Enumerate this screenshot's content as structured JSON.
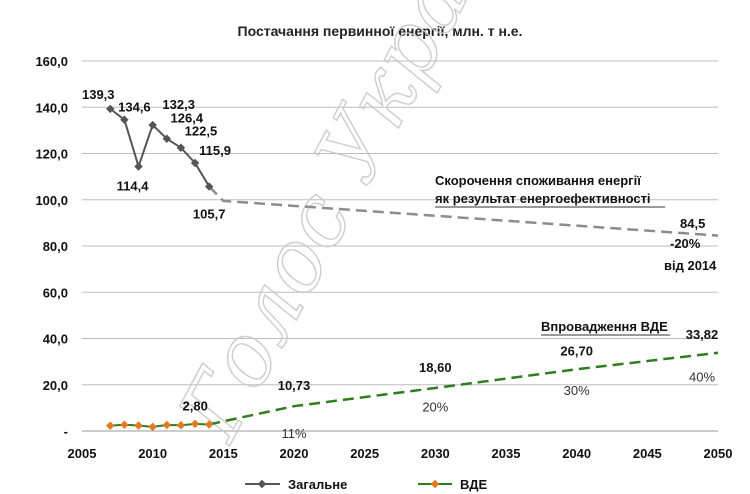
{
  "chart_data": {
    "type": "line",
    "title": "Постачання первинної енергії, млн. т н.е.",
    "xlabel": "",
    "ylabel": "",
    "xlim": [
      2005,
      2050
    ],
    "ylim": [
      0,
      160
    ],
    "x_ticks": [
      "2005",
      "2010",
      "2015",
      "2020",
      "2025",
      "2030",
      "2035",
      "2040",
      "2045",
      "2050"
    ],
    "y_ticks": [
      "-",
      "20,0",
      "40,0",
      "60,0",
      "80,0",
      "100,0",
      "120,0",
      "140,0",
      "160,0"
    ],
    "grid": "horizontal",
    "legend_position": "bottom",
    "series": [
      {
        "name": "Загальне",
        "color": "#555555",
        "x": [
          2007,
          2008,
          2009,
          2010,
          2011,
          2012,
          2013,
          2014
        ],
        "y": [
          139.3,
          134.6,
          114.4,
          132.3,
          126.4,
          122.5,
          115.9,
          105.7
        ],
        "projection": {
          "x": [
            2015,
            2050
          ],
          "y": [
            99.5,
            84.5
          ],
          "color": "#8c8c8c"
        }
      },
      {
        "name": "ВДЕ",
        "color": "#e07b22",
        "x": [
          2007,
          2008,
          2009,
          2010,
          2011,
          2012,
          2013,
          2014
        ],
        "y": [
          2.3,
          2.7,
          2.4,
          1.8,
          2.6,
          2.5,
          3.1,
          2.8
        ],
        "projection": {
          "x": [
            2015,
            2020,
            2030,
            2040,
            2050
          ],
          "y": [
            4.2,
            10.73,
            18.6,
            26.7,
            33.82
          ],
          "color": "#2e7d1e"
        }
      }
    ],
    "data_labels": [
      {
        "text": "139,3",
        "x": 2007,
        "y": 139.3
      },
      {
        "text": "134,6",
        "x": 2008,
        "y": 134.6
      },
      {
        "text": "114,4",
        "x": 2009,
        "y": 114.4
      },
      {
        "text": "132,3",
        "x": 2010,
        "y": 132.3
      },
      {
        "text": "126,4",
        "x": 2011,
        "y": 126.4
      },
      {
        "text": "122,5",
        "x": 2012,
        "y": 122.5
      },
      {
        "text": "115,9",
        "x": 2013,
        "y": 115.9
      },
      {
        "text": "105,7",
        "x": 2014,
        "y": 105.7
      },
      {
        "text": "2,80",
        "x": 2014,
        "y": 2.8
      },
      {
        "text": "10,73",
        "x": 2020,
        "y": 10.73
      },
      {
        "text": "18,60",
        "x": 2030,
        "y": 18.6
      },
      {
        "text": "26,70",
        "x": 2040,
        "y": 26.7
      },
      {
        "text": "33,82",
        "x": 2050,
        "y": 33.82
      }
    ],
    "share_labels": [
      "11%",
      "20%",
      "30%",
      "40%"
    ],
    "annotations": {
      "reduction_line1": "Скорочення споживання енергії",
      "reduction_line2": "як результат енергоефективності",
      "target_value": "84,5",
      "target_percent": "-20%",
      "target_base": "від 2014",
      "re_label": "Впровадження ВДЕ"
    },
    "watermark": "Голос України"
  }
}
